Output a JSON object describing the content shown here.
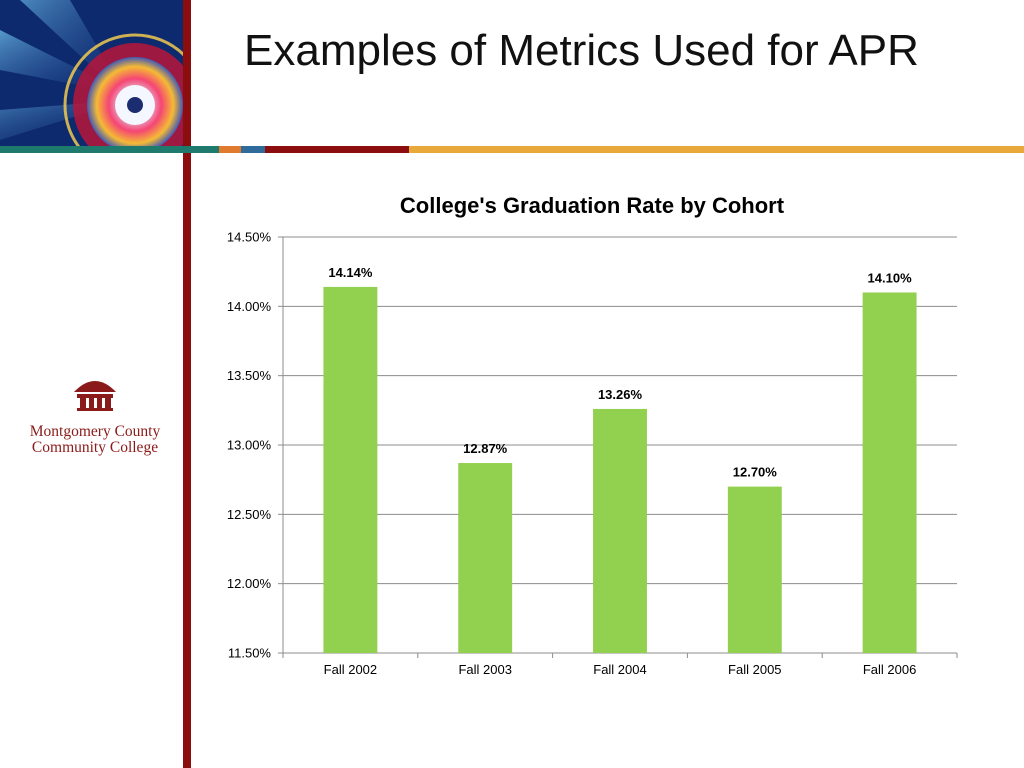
{
  "slide": {
    "title": "Examples of Metrics Used for APR"
  },
  "brand": {
    "logo_line1": "Montgomery County",
    "logo_line2": "Community College",
    "colors": {
      "maroon": "#8b0d0d",
      "teal": "#1f7a6e",
      "orange": "#e07a2e",
      "blue": "#2e6a9a",
      "gold": "#e8a93a",
      "bar_green": "#92d050"
    }
  },
  "chart_data": {
    "type": "bar",
    "title": "College's Graduation Rate by Cohort",
    "categories": [
      "Fall 2002",
      "Fall 2003",
      "Fall 2004",
      "Fall 2005",
      "Fall 2006"
    ],
    "values": [
      14.14,
      12.87,
      13.26,
      12.7,
      14.1
    ],
    "data_labels": [
      "14.14%",
      "12.87%",
      "13.26%",
      "12.70%",
      "14.10%"
    ],
    "ylim": [
      11.5,
      14.5
    ],
    "yticks": [
      11.5,
      12.0,
      12.5,
      13.0,
      13.5,
      14.0,
      14.5
    ],
    "ytick_labels": [
      "11.50%",
      "12.00%",
      "12.50%",
      "13.00%",
      "13.50%",
      "14.00%",
      "14.50%"
    ],
    "grid": true,
    "legend": "none",
    "xlabel": "",
    "ylabel": ""
  }
}
